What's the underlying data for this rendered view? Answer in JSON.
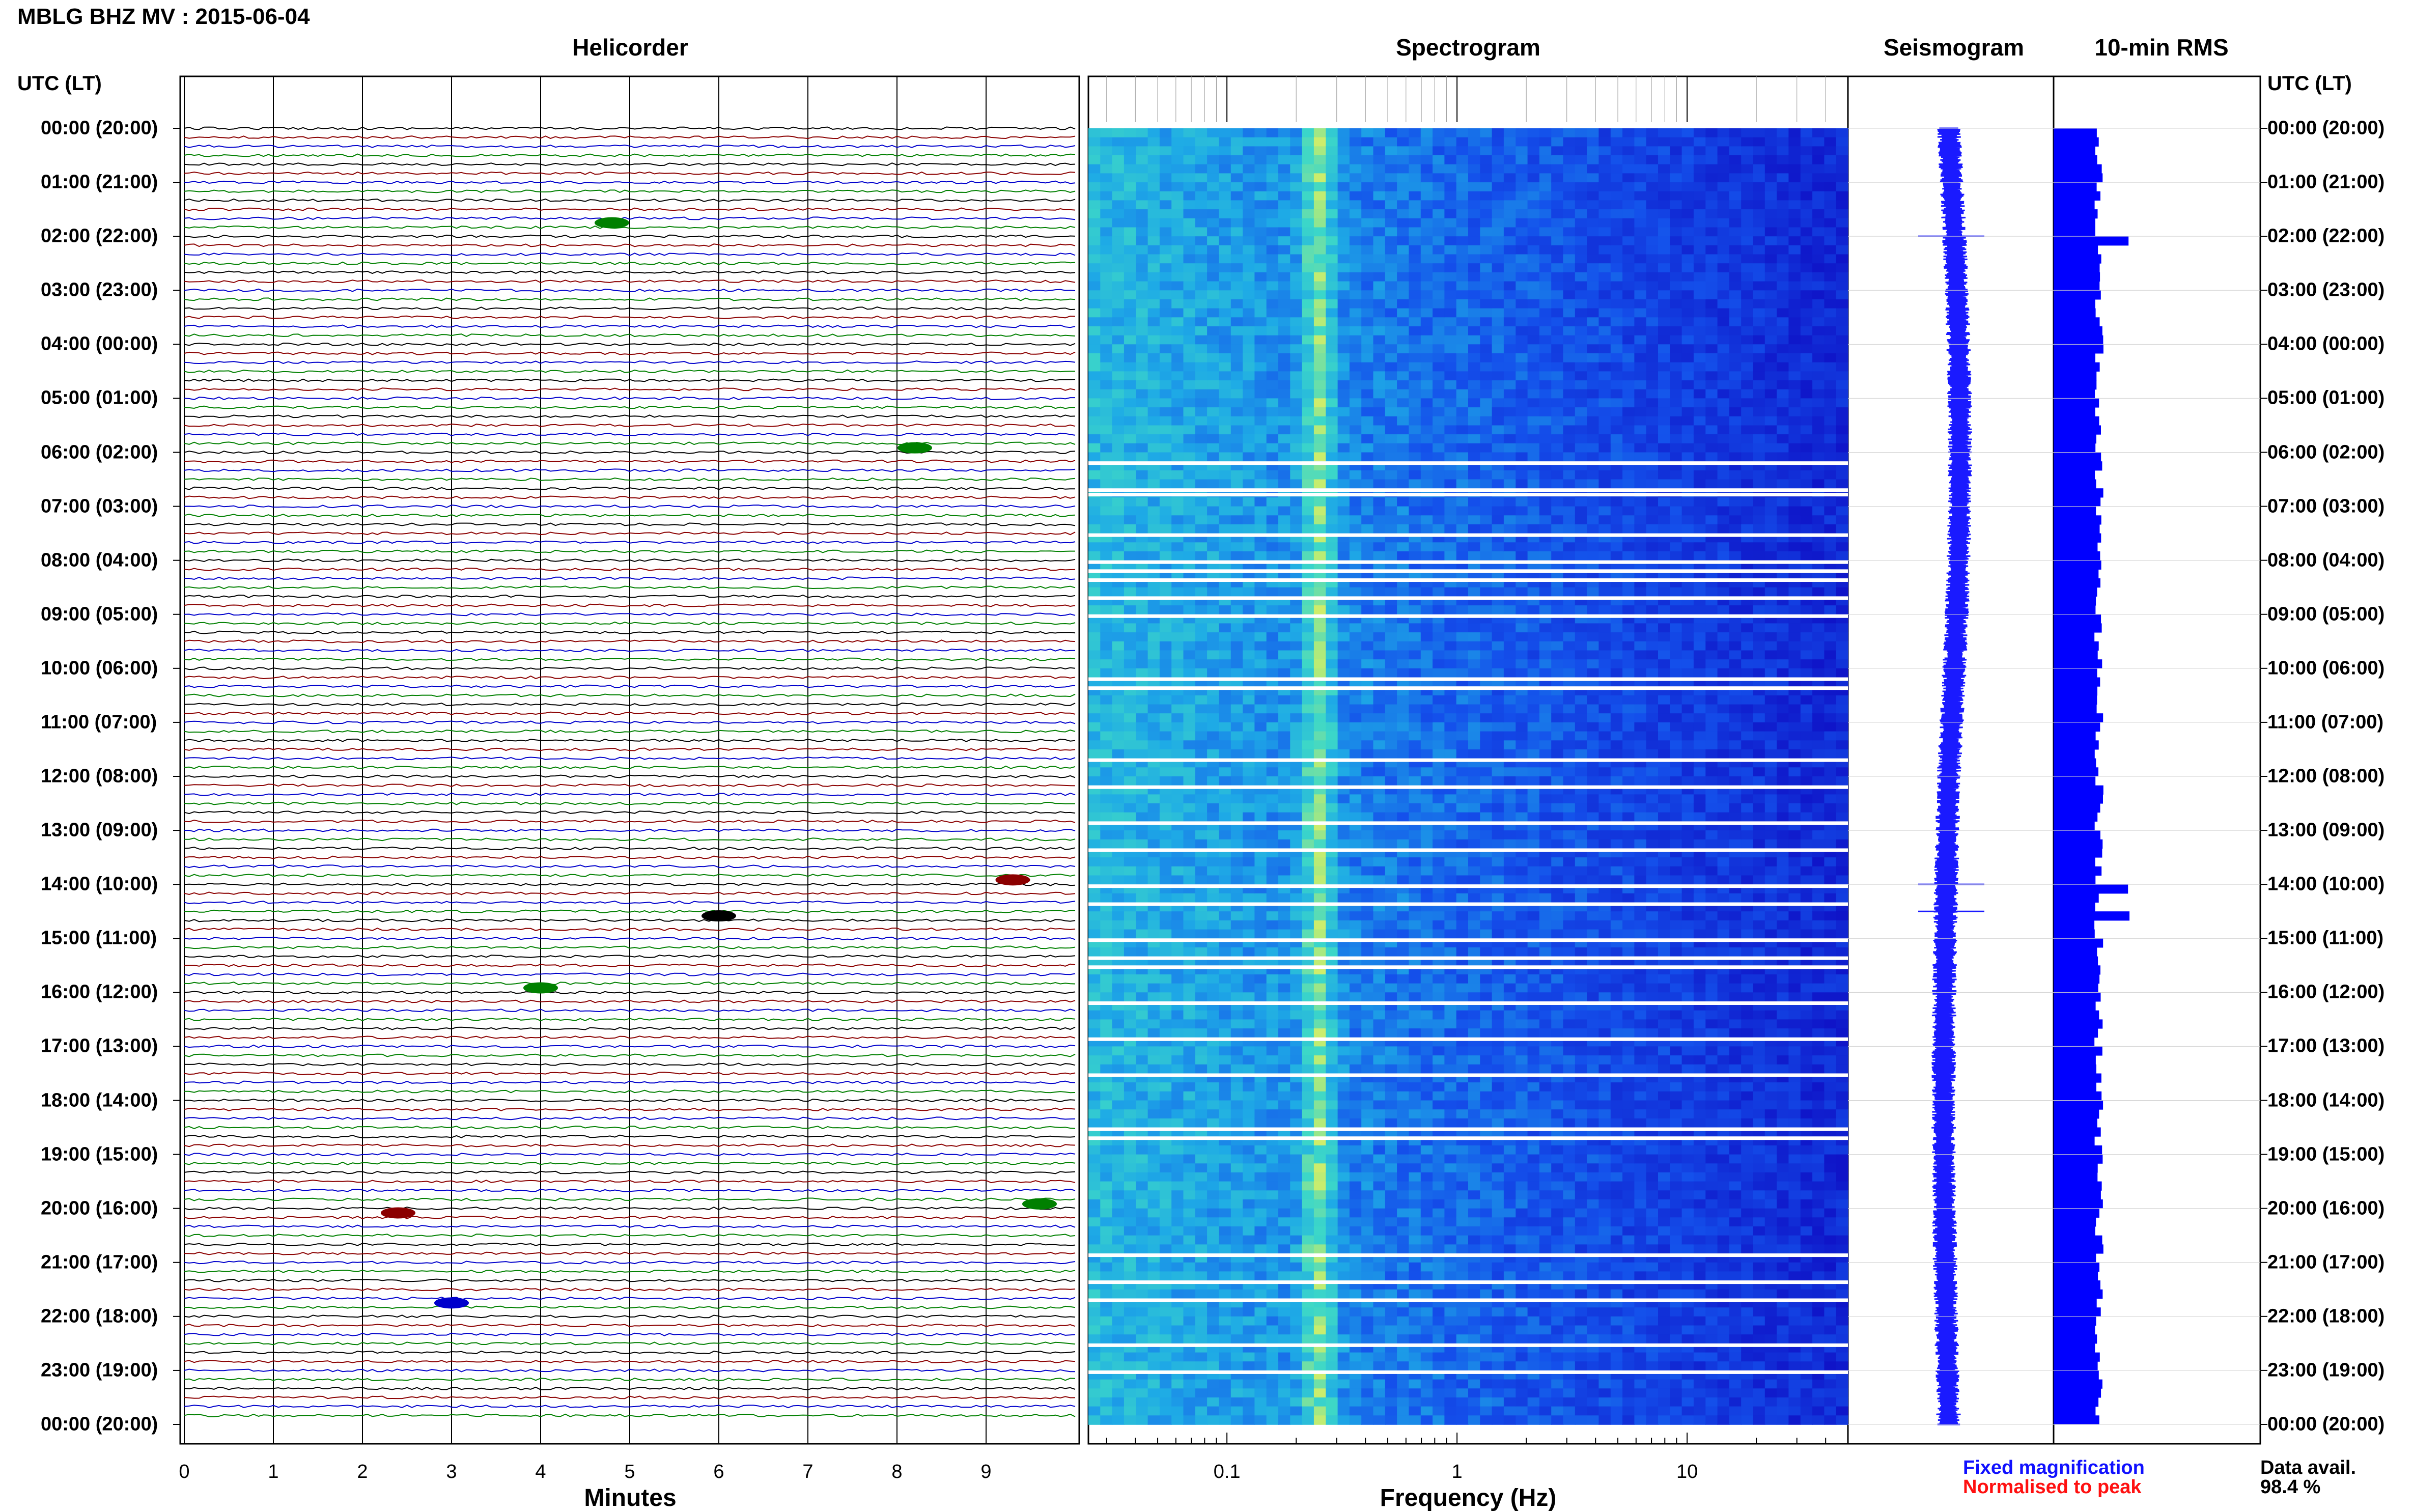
{
  "title": "MBLG BHZ MV : 2015-06-04",
  "panels": {
    "helicorder": "Helicorder",
    "spectrogram": "Spectrogram",
    "seismogram": "Seismogram",
    "rms": "10-min RMS"
  },
  "time_axis_header": "UTC (LT)",
  "time_ticks": [
    "00:00 (20:00)",
    "01:00 (21:00)",
    "02:00 (22:00)",
    "03:00 (23:00)",
    "04:00 (00:00)",
    "05:00 (01:00)",
    "06:00 (02:00)",
    "07:00 (03:00)",
    "08:00 (04:00)",
    "09:00 (05:00)",
    "10:00 (06:00)",
    "11:00 (07:00)",
    "12:00 (08:00)",
    "13:00 (09:00)",
    "14:00 (10:00)",
    "15:00 (11:00)",
    "16:00 (12:00)",
    "17:00 (13:00)",
    "18:00 (14:00)",
    "19:00 (15:00)",
    "20:00 (16:00)",
    "21:00 (17:00)",
    "22:00 (18:00)",
    "23:00 (19:00)",
    "00:00 (20:00)"
  ],
  "helicorder_xlabel": "Minutes",
  "minute_ticks": [
    "0",
    "1",
    "2",
    "3",
    "4",
    "5",
    "6",
    "7",
    "8",
    "9"
  ],
  "spectrogram_xlabel": "Frequency (Hz)",
  "frequency_ticks": [
    "0.1",
    "1",
    "10"
  ],
  "legend": {
    "fixed": "Fixed magnification",
    "normalised": "Normalised to peak",
    "fixed_color": "#1010ff",
    "normalised_color": "#ff1010"
  },
  "data_availability": {
    "label": "Data avail.",
    "value": "98.4 %"
  },
  "colors": {
    "trace_cycle": [
      "#000000",
      "#8b0000",
      "#0000cc",
      "#008000"
    ],
    "seismogram": "#1a1aff",
    "rms": "#0000ff"
  },
  "chart_data": [
    {
      "type": "line",
      "title": "Helicorder",
      "xlabel": "Minutes",
      "xlim": [
        0,
        10
      ],
      "ylim": [
        "00:00",
        "24:00"
      ],
      "rows_per_hour": 6,
      "notable_events": [
        {
          "time_utc": "01:40",
          "minute": 4.8,
          "row_color": "green"
        },
        {
          "time_utc": "05:50",
          "minute": 8.2,
          "row_color": "green"
        },
        {
          "time_utc": "13:50",
          "minute": 9.3,
          "row_color": "darkred"
        },
        {
          "time_utc": "14:30",
          "minute": 6.0,
          "row_color": "black"
        },
        {
          "time_utc": "15:50",
          "minute": 4.0,
          "row_color": "green"
        },
        {
          "time_utc": "19:50",
          "minute": 9.6,
          "row_color": "green"
        },
        {
          "time_utc": "20:00",
          "minute": 2.4,
          "row_color": "darkred"
        },
        {
          "time_utc": "21:40",
          "minute": 3.0,
          "row_color": "blue"
        }
      ]
    },
    {
      "type": "heatmap",
      "title": "Spectrogram",
      "xlabel": "Frequency (Hz)",
      "xscale": "log",
      "xlim": [
        0.025,
        50
      ],
      "peak_band_hz": 0.25,
      "data_gaps_utc": [
        "06:10",
        "06:40",
        "06:45",
        "07:30",
        "08:00",
        "08:10",
        "08:20",
        "08:40",
        "09:00",
        "10:10",
        "10:20",
        "11:40",
        "12:10",
        "12:50",
        "13:20",
        "14:00",
        "14:20",
        "15:00",
        "15:20",
        "15:30",
        "16:10",
        "16:50",
        "17:30",
        "18:30",
        "18:40",
        "20:50",
        "21:20",
        "21:40",
        "22:30",
        "23:00"
      ]
    },
    {
      "type": "line",
      "title": "Seismogram",
      "scale": "Fixed magnification"
    },
    {
      "type": "bar",
      "title": "10-min RMS",
      "orientation": "horizontal",
      "spikes_utc": [
        "02:00",
        "14:00",
        "14:30"
      ]
    }
  ]
}
